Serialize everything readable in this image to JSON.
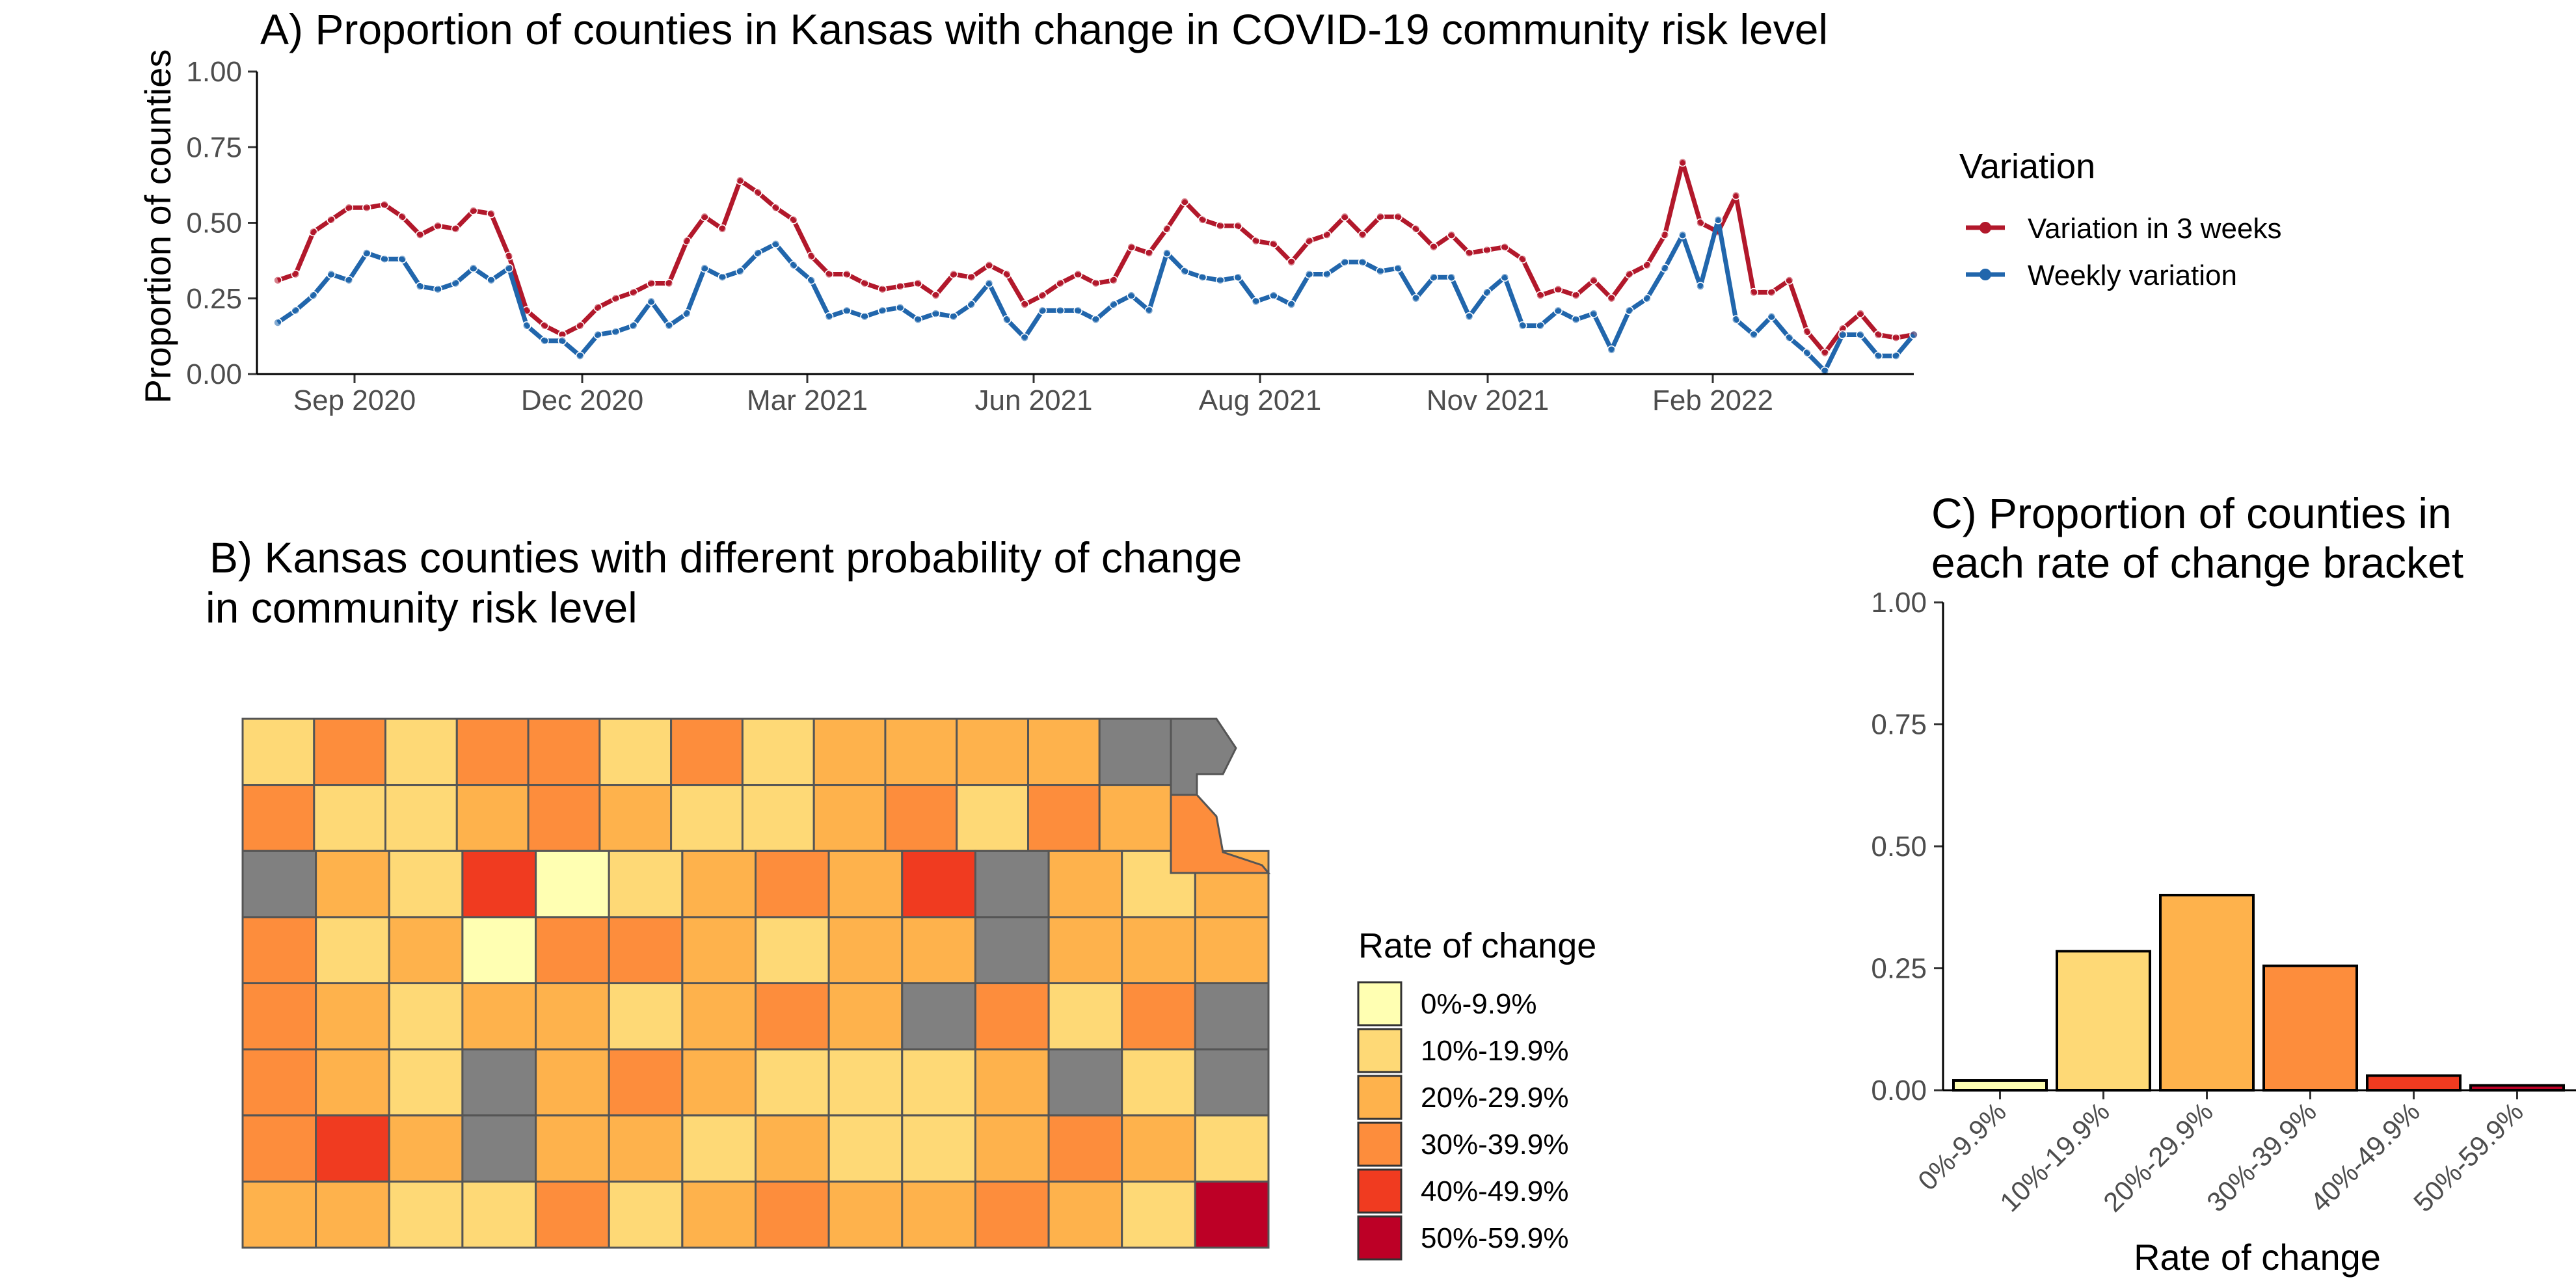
{
  "chart_data": [
    {
      "id": "A",
      "type": "line",
      "title": "A) Proportion of counties in Kansas with change in COVID-19 community risk level",
      "xlabel": "",
      "ylabel": "Proportion of counties",
      "ylim": [
        0,
        1
      ],
      "yticks": [
        "0.00",
        "0.25",
        "0.50",
        "0.75",
        "1.00"
      ],
      "xticks": [
        "Sep 2020",
        "Dec 2020",
        "Mar 2021",
        "Jun 2021",
        "Aug 2021",
        "Nov 2021",
        "Feb 2022"
      ],
      "grid": false,
      "legend_title": "Variation",
      "legend_position": "right",
      "series": [
        {
          "name": "Variation in 3 weeks",
          "color": "#b2182b",
          "values": [
            0.31,
            0.33,
            0.47,
            0.51,
            0.55,
            0.55,
            0.56,
            0.52,
            0.46,
            0.49,
            0.48,
            0.54,
            0.53,
            0.39,
            0.21,
            0.16,
            0.13,
            0.16,
            0.22,
            0.25,
            0.27,
            0.3,
            0.3,
            0.44,
            0.52,
            0.48,
            0.64,
            0.6,
            0.55,
            0.51,
            0.39,
            0.33,
            0.33,
            0.3,
            0.28,
            0.29,
            0.3,
            0.26,
            0.33,
            0.32,
            0.36,
            0.33,
            0.23,
            0.26,
            0.3,
            0.33,
            0.3,
            0.31,
            0.42,
            0.4,
            0.48,
            0.57,
            0.51,
            0.49,
            0.49,
            0.44,
            0.43,
            0.37,
            0.44,
            0.46,
            0.52,
            0.46,
            0.52,
            0.52,
            0.48,
            0.42,
            0.46,
            0.4,
            0.41,
            0.42,
            0.38,
            0.26,
            0.28,
            0.26,
            0.31,
            0.25,
            0.33,
            0.36,
            0.46,
            0.7,
            0.5,
            0.47,
            0.59,
            0.27,
            0.27,
            0.31,
            0.14,
            0.07,
            0.15,
            0.2,
            0.13,
            0.12,
            0.13
          ]
        },
        {
          "name": "Weekly variation",
          "color": "#2166ac",
          "values": [
            0.17,
            0.21,
            0.26,
            0.33,
            0.31,
            0.4,
            0.38,
            0.38,
            0.29,
            0.28,
            0.3,
            0.35,
            0.31,
            0.35,
            0.16,
            0.11,
            0.11,
            0.06,
            0.13,
            0.14,
            0.16,
            0.24,
            0.16,
            0.2,
            0.35,
            0.32,
            0.34,
            0.4,
            0.43,
            0.36,
            0.31,
            0.19,
            0.21,
            0.19,
            0.21,
            0.22,
            0.18,
            0.2,
            0.19,
            0.23,
            0.3,
            0.18,
            0.12,
            0.21,
            0.21,
            0.21,
            0.18,
            0.23,
            0.26,
            0.21,
            0.4,
            0.34,
            0.32,
            0.31,
            0.32,
            0.24,
            0.26,
            0.23,
            0.33,
            0.33,
            0.37,
            0.37,
            0.34,
            0.35,
            0.25,
            0.32,
            0.32,
            0.19,
            0.27,
            0.32,
            0.16,
            0.16,
            0.21,
            0.18,
            0.2,
            0.08,
            0.21,
            0.25,
            0.35,
            0.46,
            0.29,
            0.51,
            0.18,
            0.13,
            0.19,
            0.12,
            0.07,
            0.01,
            0.13,
            0.13,
            0.06,
            0.06,
            0.13
          ]
        }
      ]
    },
    {
      "id": "B",
      "type": "map",
      "title": "B)  Kansas counties with different probability of change in community risk level",
      "legend_title": "Rate of change",
      "legend": [
        {
          "label": "0%-9.9%",
          "color": "#ffffb2"
        },
        {
          "label": "10%-19.9%",
          "color": "#fed976"
        },
        {
          "label": "20%-29.9%",
          "color": "#feb24c"
        },
        {
          "label": "30%-39.9%",
          "color": "#fd8d3c"
        },
        {
          "label": "40%-49.9%",
          "color": "#f03b20"
        },
        {
          "label": "50%-59.9%",
          "color": "#bd0026"
        }
      ],
      "no_data_color": "#808080",
      "counties": [
        [
          "10%-19.9%",
          "30%-39.9%",
          "10%-19.9%",
          "30%-39.9%",
          "30%-39.9%",
          "10%-19.9%",
          "30%-39.9%",
          "10%-19.9%",
          "20%-29.9%",
          "20%-29.9%",
          "20%-29.9%",
          "20%-29.9%",
          "none"
        ],
        [
          "30%-39.9%",
          "10%-19.9%",
          "10%-19.9%",
          "20%-29.9%",
          "30%-39.9%",
          "20%-29.9%",
          "10%-19.9%",
          "10%-19.9%",
          "20%-29.9%",
          "30%-39.9%",
          "10%-19.9%",
          "30%-39.9%",
          "20%-29.9%"
        ],
        [
          "none",
          "20%-29.9%",
          "10%-19.9%",
          "40%-49.9%",
          "0%-9.9%",
          "10%-19.9%",
          "20%-29.9%",
          "30%-39.9%",
          "20%-29.9%",
          "40%-49.9%",
          "none",
          "20%-29.9%",
          "10%-19.9%",
          "20%-29.9%"
        ],
        [
          "30%-39.9%",
          "10%-19.9%",
          "20%-29.9%",
          "0%-9.9%",
          "30%-39.9%",
          "30%-39.9%",
          "20%-29.9%",
          "10%-19.9%",
          "20%-29.9%",
          "20%-29.9%",
          "none",
          "20%-29.9%",
          "20%-29.9%",
          "20%-29.9%"
        ],
        [
          "30%-39.9%",
          "20%-29.9%",
          "10%-19.9%",
          "20%-29.9%",
          "20%-29.9%",
          "10%-19.9%",
          "20%-29.9%",
          "30%-39.9%",
          "20%-29.9%",
          "none",
          "30%-39.9%",
          "10%-19.9%",
          "30%-39.9%",
          "none"
        ],
        [
          "30%-39.9%",
          "20%-29.9%",
          "10%-19.9%",
          "none",
          "20%-29.9%",
          "30%-39.9%",
          "20%-29.9%",
          "10%-19.9%",
          "10%-19.9%",
          "10%-19.9%",
          "20%-29.9%",
          "none",
          "10%-19.9%",
          "none"
        ],
        [
          "30%-39.9%",
          "40%-49.9%",
          "20%-29.9%",
          "none",
          "20%-29.9%",
          "20%-29.9%",
          "10%-19.9%",
          "20%-29.9%",
          "10%-19.9%",
          "10%-19.9%",
          "20%-29.9%",
          "30%-39.9%",
          "20%-29.9%",
          "10%-19.9%"
        ],
        [
          "20%-29.9%",
          "20%-29.9%",
          "10%-19.9%",
          "10%-19.9%",
          "30%-39.9%",
          "10%-19.9%",
          "20%-29.9%",
          "30%-39.9%",
          "20%-29.9%",
          "20%-29.9%",
          "30%-39.9%",
          "20%-29.9%",
          "10%-19.9%",
          "50%-59.9%"
        ]
      ]
    },
    {
      "id": "C",
      "type": "bar",
      "title": "C) Proportion of counties in each rate of change bracket",
      "xlabel": "Rate of change",
      "ylabel": "",
      "ylim": [
        0,
        1
      ],
      "yticks": [
        "0.00",
        "0.25",
        "0.50",
        "0.75",
        "1.00"
      ],
      "categories": [
        "0%-9.9%",
        "10%-19.9%",
        "20%-29.9%",
        "30%-39.9%",
        "40%-49.9%",
        "50%-59.9%"
      ],
      "values": [
        0.02,
        0.285,
        0.4,
        0.255,
        0.03,
        0.01
      ],
      "colors": [
        "#ffffb2",
        "#fed976",
        "#feb24c",
        "#fd8d3c",
        "#f03b20",
        "#bd0026"
      ],
      "grid": false
    }
  ]
}
